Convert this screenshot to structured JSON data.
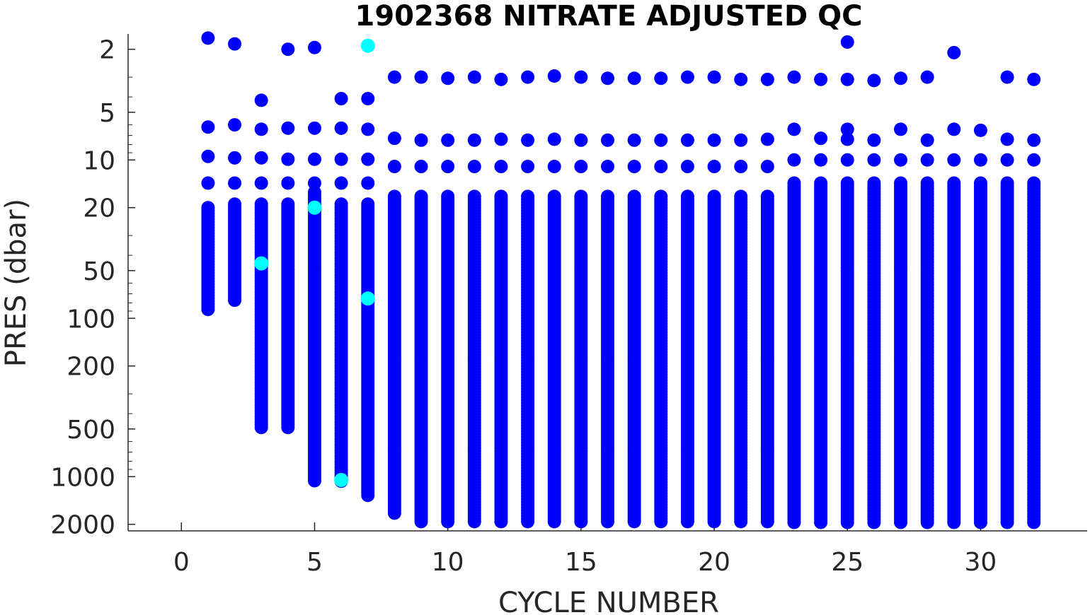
{
  "chart_data": {
    "type": "scatter",
    "title": "1902368  NITRATE ADJUSTED QC",
    "xlabel": "CYCLE NUMBER",
    "ylabel": "PRES (dbar)",
    "xlim": [
      -2,
      34
    ],
    "ylim": [
      1.6,
      2200
    ],
    "y_scale": "log",
    "y_reversed": true,
    "x_ticks": [
      "0",
      "5",
      "10",
      "15",
      "20",
      "25",
      "30"
    ],
    "y_ticks": [
      "2",
      "5",
      "10",
      "20",
      "50",
      "100",
      "200",
      "500",
      "1000",
      "2000"
    ],
    "grid": false,
    "colors": {
      "good": "#0000ff",
      "flagged": "#00ffff"
    },
    "profiles": [
      {
        "cycle": 1,
        "top": 1.7,
        "shallow": [
          6.2,
          9.5,
          14
        ],
        "dense_from": 20,
        "dense_to": 90
      },
      {
        "cycle": 2,
        "top": 1.85,
        "shallow": [
          6.0,
          9.7,
          14
        ],
        "dense_from": 19,
        "dense_to": 80
      },
      {
        "cycle": 3,
        "top": 4.2,
        "shallow": [
          6.4,
          9.7,
          14
        ],
        "dense_from": 19,
        "dense_to": 500
      },
      {
        "cycle": 4,
        "top": 2.0,
        "shallow": [
          6.3,
          9.9,
          14
        ],
        "dense_from": 19,
        "dense_to": 500
      },
      {
        "cycle": 5,
        "top": 1.95,
        "shallow": [
          6.3,
          9.9,
          14
        ],
        "dense_from": 16,
        "dense_to": 1100
      },
      {
        "cycle": 6,
        "top": 4.1,
        "shallow": [
          6.3,
          9.9,
          14
        ],
        "dense_from": 19,
        "dense_to": 1100
      },
      {
        "cycle": 7,
        "top": 4.1,
        "shallow": [
          6.4,
          9.9,
          14
        ],
        "dense_from": 19,
        "dense_to": 1350
      },
      {
        "cycle": 8,
        "top": 3.0,
        "shallow": [
          7.3,
          11
        ],
        "dense_from": 17,
        "dense_to": 1700
      },
      {
        "cycle": 9,
        "top": 3.0,
        "shallow": [
          7.5,
          11
        ],
        "dense_from": 17,
        "dense_to": 1950
      },
      {
        "cycle": 10,
        "top": 3.05,
        "shallow": [
          7.5,
          11
        ],
        "dense_from": 17,
        "dense_to": 1950
      },
      {
        "cycle": 11,
        "top": 3.0,
        "shallow": [
          7.5,
          11
        ],
        "dense_from": 17,
        "dense_to": 1980
      },
      {
        "cycle": 12,
        "top": 3.1,
        "shallow": [
          7.4,
          11
        ],
        "dense_from": 17,
        "dense_to": 1980
      },
      {
        "cycle": 13,
        "top": 3.0,
        "shallow": [
          7.5,
          11
        ],
        "dense_from": 17,
        "dense_to": 1980
      },
      {
        "cycle": 14,
        "top": 2.95,
        "shallow": [
          7.4,
          11
        ],
        "dense_from": 17,
        "dense_to": 1980
      },
      {
        "cycle": 15,
        "top": 3.0,
        "shallow": [
          7.5,
          11
        ],
        "dense_from": 17,
        "dense_to": 1980
      },
      {
        "cycle": 16,
        "top": 3.05,
        "shallow": [
          7.5,
          11
        ],
        "dense_from": 17,
        "dense_to": 1980
      },
      {
        "cycle": 17,
        "top": 3.05,
        "shallow": [
          7.5,
          11
        ],
        "dense_from": 17,
        "dense_to": 1980
      },
      {
        "cycle": 18,
        "top": 3.05,
        "shallow": [
          7.5,
          11
        ],
        "dense_from": 17,
        "dense_to": 1980
      },
      {
        "cycle": 19,
        "top": 3.0,
        "shallow": [
          7.5,
          11
        ],
        "dense_from": 17,
        "dense_to": 1980
      },
      {
        "cycle": 20,
        "top": 3.0,
        "shallow": [
          7.5,
          11
        ],
        "dense_from": 17,
        "dense_to": 1980
      },
      {
        "cycle": 21,
        "top": 3.1,
        "shallow": [
          7.5,
          11
        ],
        "dense_from": 17,
        "dense_to": 1980
      },
      {
        "cycle": 22,
        "top": 3.1,
        "shallow": [
          7.4,
          11
        ],
        "dense_from": 17,
        "dense_to": 1980
      },
      {
        "cycle": 23,
        "top": 3.0,
        "shallow": [
          6.4,
          10
        ],
        "dense_from": 14,
        "dense_to": 1980
      },
      {
        "cycle": 24,
        "top": 3.1,
        "shallow": [
          7.3,
          10
        ],
        "dense_from": 14,
        "dense_to": 1980
      },
      {
        "cycle": 25,
        "top": 1.8,
        "shallow": [
          3.1,
          6.4,
          7.4,
          10
        ],
        "dense_from": 14,
        "dense_to": 1980
      },
      {
        "cycle": 26,
        "top": 3.15,
        "shallow": [
          7.5,
          10
        ],
        "dense_from": 14,
        "dense_to": 1980
      },
      {
        "cycle": 27,
        "top": 3.05,
        "shallow": [
          6.4,
          10
        ],
        "dense_from": 14,
        "dense_to": 1980
      },
      {
        "cycle": 28,
        "top": 3.0,
        "shallow": [
          7.5,
          10
        ],
        "dense_from": 14,
        "dense_to": 1980
      },
      {
        "cycle": 29,
        "top": 2.1,
        "shallow": [
          6.4,
          10
        ],
        "dense_from": 14,
        "dense_to": 1980
      },
      {
        "cycle": 30,
        "top": 6.5,
        "shallow": [
          10
        ],
        "dense_from": 14,
        "dense_to": 1980
      },
      {
        "cycle": 31,
        "top": 3.0,
        "shallow": [
          7.4,
          10
        ],
        "dense_from": 14,
        "dense_to": 1980
      },
      {
        "cycle": 32,
        "top": 3.1,
        "shallow": [
          7.5,
          10
        ],
        "dense_from": 14,
        "dense_to": 1980
      }
    ],
    "flagged_points": [
      {
        "cycle": 3,
        "pres": 45
      },
      {
        "cycle": 5,
        "pres": 20
      },
      {
        "cycle": 6,
        "pres": 1050
      },
      {
        "cycle": 7,
        "pres": 1.9
      },
      {
        "cycle": 7,
        "pres": 75
      }
    ]
  }
}
